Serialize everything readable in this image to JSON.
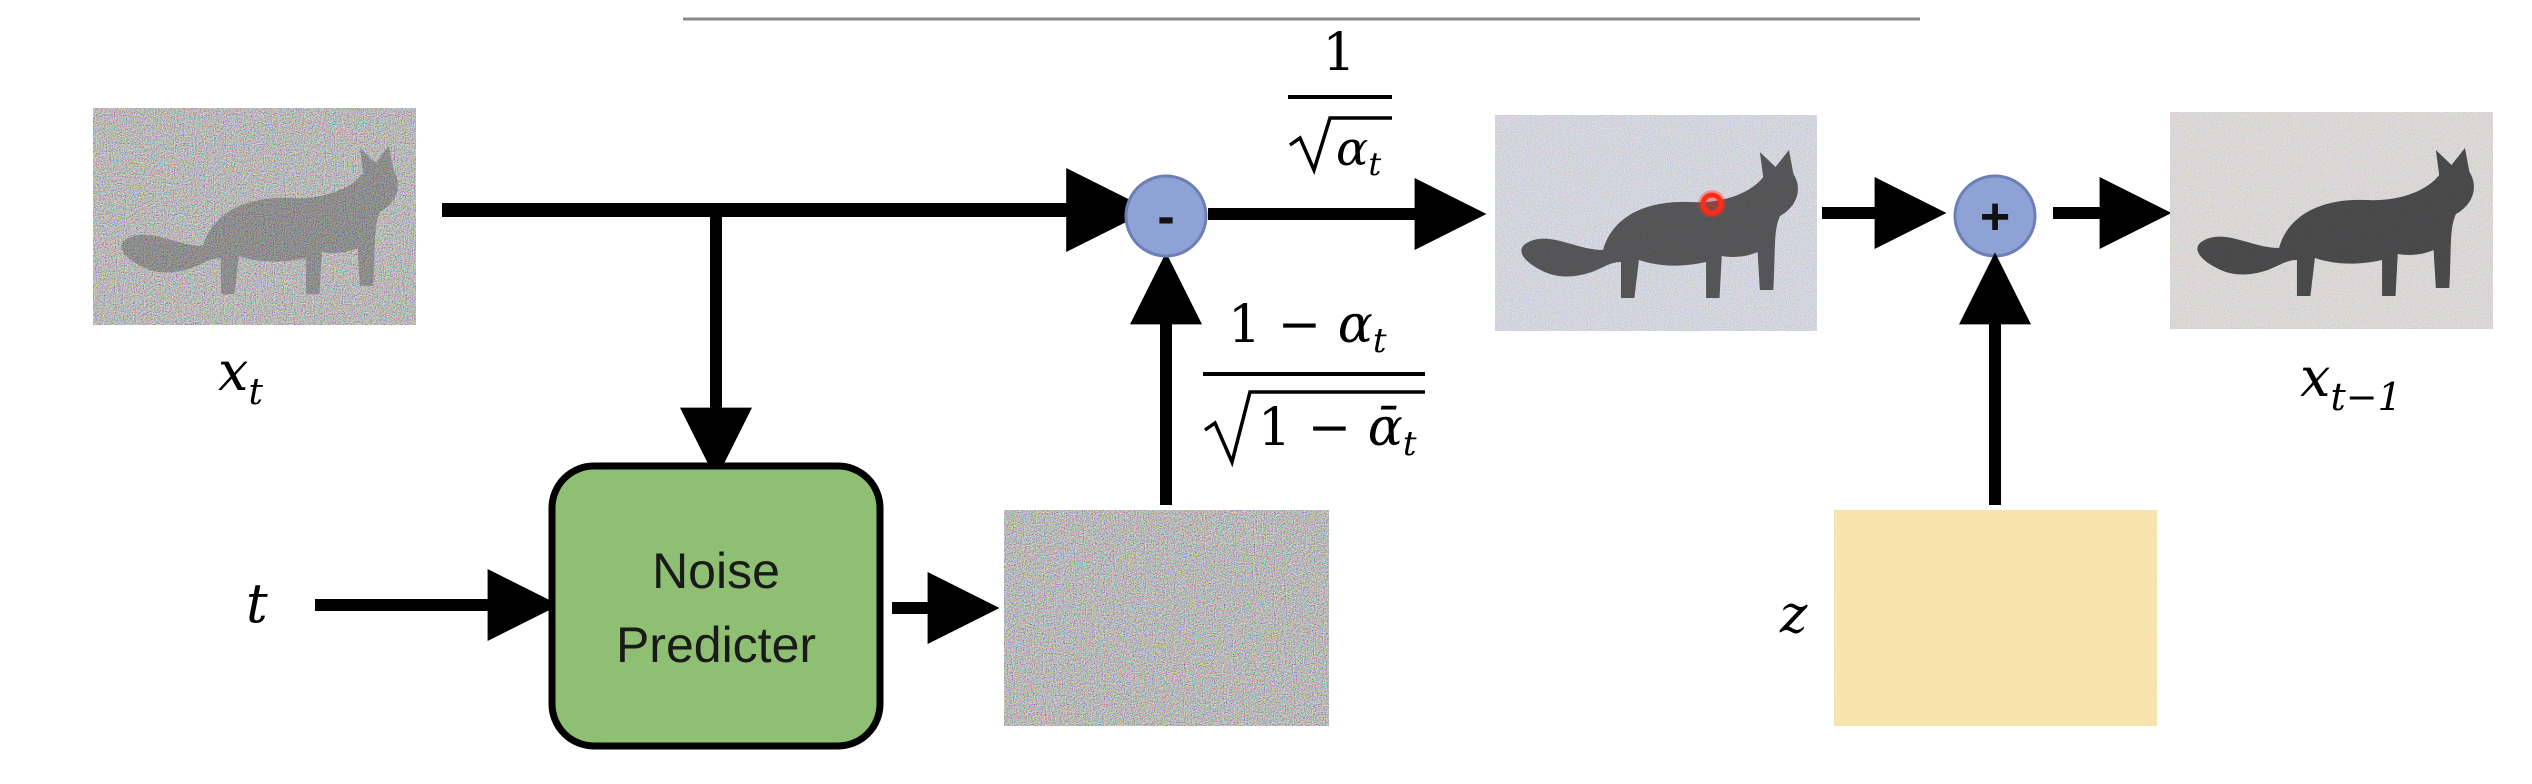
{
  "inputs": {
    "xt_base": "x",
    "xt_sub": "t",
    "t_label": "t",
    "z_label": "z",
    "xtm1_base": "x",
    "xtm1_sub": "t−1"
  },
  "noise_predictor": {
    "line1": "Noise",
    "line2": "Predicter"
  },
  "operators": {
    "minus": "-",
    "plus": "+"
  },
  "coefficients": {
    "scale_numerator": "1",
    "scale_radicand": "α",
    "scale_radicand_sub": "t",
    "noise_num_prefix": "1 − ",
    "noise_num_var": "α",
    "noise_num_sub": "t",
    "noise_den_prefix": "1 − ",
    "noise_den_var": "ᾱ",
    "noise_den_sub": "t"
  },
  "colors": {
    "arrow": "#000000",
    "predictor_fill": "#8fbf73",
    "predictor_stroke": "#000000",
    "operator_fill": "#8fa2d6",
    "operator_stroke": "#6c7fb8",
    "noise_z_color": "#d9b563",
    "cursor_dot": "#ff2a1a"
  }
}
